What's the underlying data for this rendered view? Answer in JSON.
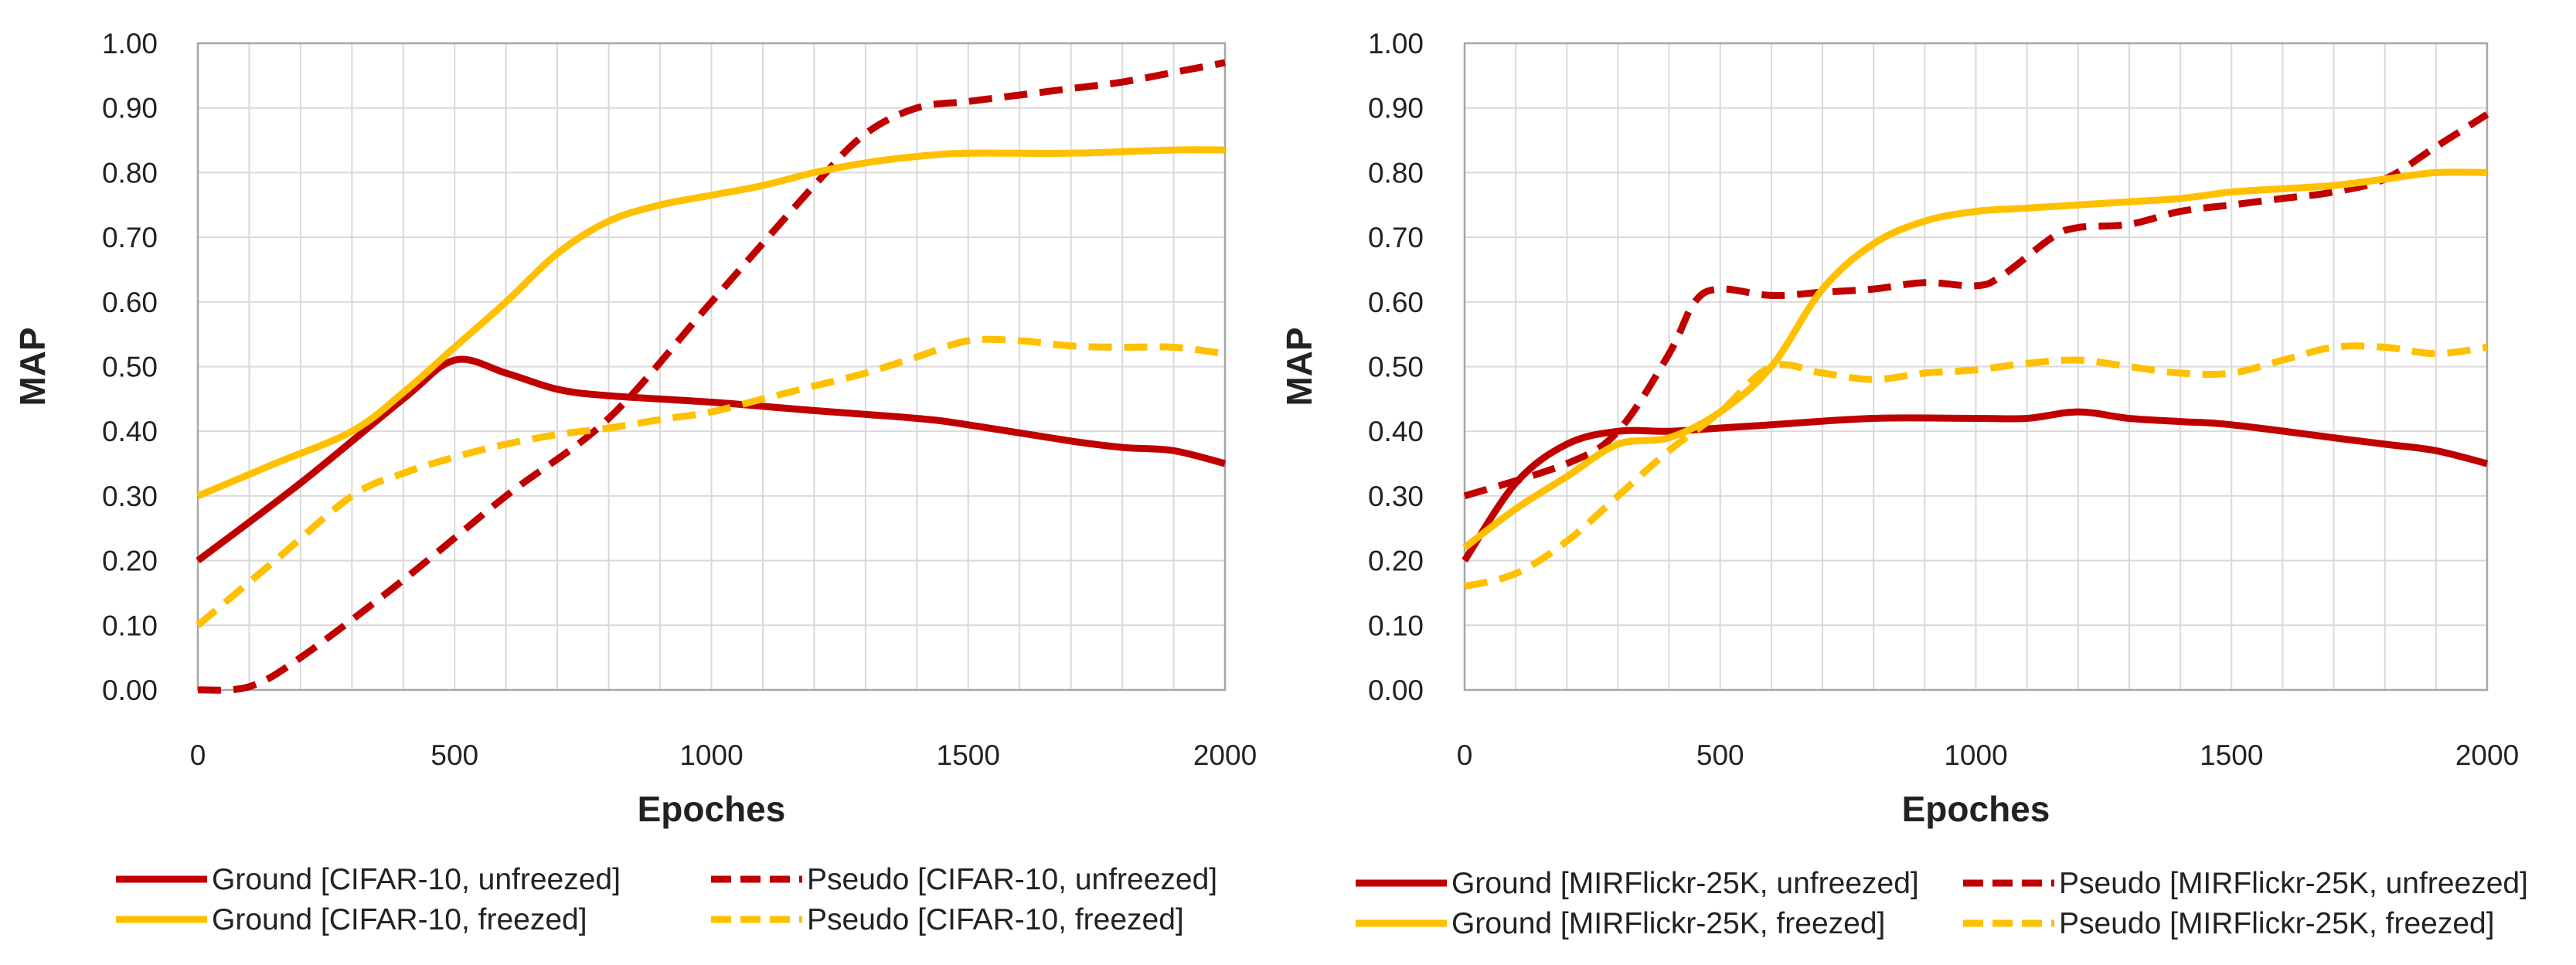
{
  "colors": {
    "red": "#c00000",
    "yellow": "#ffc000",
    "grid": "#d9d9d9",
    "axis": "#a6a6a6",
    "text": "#222222"
  },
  "chart_data": [
    {
      "type": "line",
      "title": "",
      "xlabel": "Epoches",
      "ylabel": "MAP",
      "xlim": [
        0,
        2000
      ],
      "ylim": [
        0,
        1
      ],
      "xticks": [
        "0",
        "500",
        "1000",
        "1500",
        "2000"
      ],
      "yticks": [
        "0.00",
        "0.10",
        "0.20",
        "0.30",
        "0.40",
        "0.50",
        "0.60",
        "0.70",
        "0.80",
        "0.90",
        "1.00"
      ],
      "grid": true,
      "legend_position": "bottom",
      "series": [
        {
          "name": "Ground [CIFAR-10, unfreezed]",
          "color": "#c00000",
          "dashed": false,
          "x": [
            0,
            200,
            400,
            500,
            600,
            700,
            800,
            1000,
            1200,
            1400,
            1500,
            1700,
            1800,
            1900,
            2000
          ],
          "y": [
            0.2,
            0.32,
            0.45,
            0.51,
            0.49,
            0.465,
            0.455,
            0.445,
            0.432,
            0.42,
            0.41,
            0.385,
            0.375,
            0.37,
            0.35
          ]
        },
        {
          "name": "Pseudo [CIFAR-10, unfreezed]",
          "color": "#c00000",
          "dashed": true,
          "x": [
            0,
            100,
            200,
            400,
            600,
            800,
            1000,
            1200,
            1300,
            1400,
            1500,
            1600,
            1700,
            1800,
            1900,
            2000
          ],
          "y": [
            0.0,
            0.005,
            0.05,
            0.17,
            0.3,
            0.42,
            0.6,
            0.78,
            0.86,
            0.9,
            0.91,
            0.92,
            0.93,
            0.94,
            0.955,
            0.97
          ]
        },
        {
          "name": "Ground [CIFAR-10, freezed]",
          "color": "#ffc000",
          "dashed": false,
          "x": [
            0,
            150,
            300,
            400,
            500,
            600,
            700,
            800,
            900,
            1000,
            1100,
            1200,
            1300,
            1400,
            1500,
            1700,
            1900,
            2000
          ],
          "y": [
            0.3,
            0.35,
            0.4,
            0.46,
            0.53,
            0.6,
            0.675,
            0.725,
            0.75,
            0.765,
            0.78,
            0.8,
            0.815,
            0.825,
            0.83,
            0.83,
            0.835,
            0.835
          ]
        },
        {
          "name": "Pseudo [CIFAR-10, freezed]",
          "color": "#ffc000",
          "dashed": true,
          "x": [
            0,
            150,
            300,
            400,
            500,
            600,
            700,
            800,
            900,
            1000,
            1100,
            1200,
            1300,
            1400,
            1500,
            1600,
            1700,
            1800,
            1900,
            2000
          ],
          "y": [
            0.1,
            0.2,
            0.3,
            0.335,
            0.36,
            0.38,
            0.395,
            0.405,
            0.418,
            0.43,
            0.45,
            0.47,
            0.49,
            0.515,
            0.54,
            0.54,
            0.532,
            0.53,
            0.53,
            0.52
          ]
        }
      ]
    },
    {
      "type": "line",
      "title": "",
      "xlabel": "Epoches",
      "ylabel": "MAP",
      "xlim": [
        0,
        2000
      ],
      "ylim": [
        0,
        1
      ],
      "xticks": [
        "0",
        "500",
        "1000",
        "1500",
        "2000"
      ],
      "yticks": [
        "0.00",
        "0.10",
        "0.20",
        "0.30",
        "0.40",
        "0.50",
        "0.60",
        "0.70",
        "0.80",
        "0.90",
        "1.00"
      ],
      "grid": true,
      "legend_position": "bottom",
      "series": [
        {
          "name": "Ground [MIRFlickr-25K, unfreezed]",
          "color": "#c00000",
          "dashed": false,
          "x": [
            0,
            100,
            200,
            300,
            400,
            500,
            600,
            800,
            1000,
            1100,
            1200,
            1300,
            1400,
            1500,
            1700,
            1800,
            1900,
            2000
          ],
          "y": [
            0.2,
            0.32,
            0.38,
            0.4,
            0.4,
            0.405,
            0.41,
            0.42,
            0.42,
            0.42,
            0.43,
            0.42,
            0.415,
            0.41,
            0.39,
            0.38,
            0.37,
            0.35
          ]
        },
        {
          "name": "Pseudo [MIRFlickr-25K, unfreezed]",
          "color": "#c00000",
          "dashed": true,
          "x": [
            0,
            200,
            300,
            400,
            450,
            500,
            600,
            700,
            800,
            900,
            1000,
            1050,
            1150,
            1200,
            1300,
            1400,
            1500,
            1600,
            1700,
            1800,
            1900,
            2000
          ],
          "y": [
            0.3,
            0.35,
            0.4,
            0.52,
            0.6,
            0.62,
            0.61,
            0.615,
            0.62,
            0.63,
            0.625,
            0.64,
            0.7,
            0.715,
            0.72,
            0.74,
            0.75,
            0.76,
            0.77,
            0.79,
            0.84,
            0.89
          ]
        },
        {
          "name": "Ground [MIRFlickr-25K, freezed]",
          "color": "#ffc000",
          "dashed": false,
          "x": [
            0,
            100,
            200,
            300,
            400,
            500,
            600,
            700,
            800,
            900,
            1000,
            1100,
            1200,
            1300,
            1400,
            1500,
            1600,
            1700,
            1800,
            1900,
            2000
          ],
          "y": [
            0.22,
            0.28,
            0.33,
            0.38,
            0.39,
            0.43,
            0.5,
            0.62,
            0.69,
            0.725,
            0.74,
            0.745,
            0.75,
            0.755,
            0.76,
            0.77,
            0.775,
            0.78,
            0.79,
            0.8,
            0.8
          ]
        },
        {
          "name": "Pseudo [MIRFlickr-25K, freezed]",
          "color": "#ffc000",
          "dashed": true,
          "x": [
            0,
            100,
            200,
            300,
            400,
            500,
            600,
            700,
            800,
            900,
            1000,
            1100,
            1200,
            1300,
            1400,
            1500,
            1600,
            1700,
            1800,
            1900,
            2000
          ],
          "y": [
            0.16,
            0.18,
            0.23,
            0.3,
            0.37,
            0.43,
            0.5,
            0.49,
            0.48,
            0.49,
            0.495,
            0.505,
            0.51,
            0.5,
            0.49,
            0.49,
            0.51,
            0.53,
            0.53,
            0.52,
            0.53
          ]
        }
      ]
    }
  ]
}
